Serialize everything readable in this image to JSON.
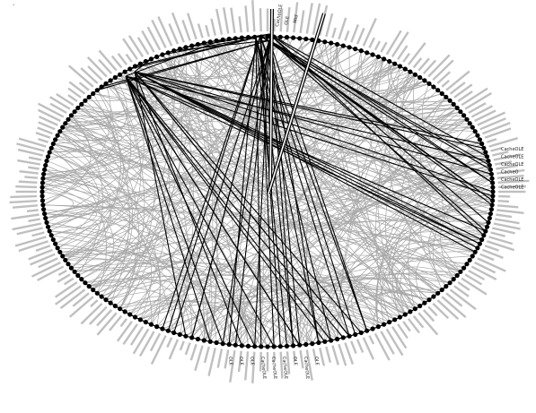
{
  "diagram": {
    "type": "circular-network-graph",
    "colors": {
      "background": "#ffffff",
      "ellipse_outline": "#000000",
      "node_fill": "#000000",
      "edge_faint": "#a6a6a6",
      "edge_strong": "#000000",
      "label_text": "#222222"
    },
    "stats": {
      "node_count_estimate": 220,
      "faint_edge_count_estimate": 420,
      "highlighted_edge_count_estimate": 70
    },
    "corner_mark": "`",
    "hub_labels": [
      "CacheOLE",
      "OLE",
      "Mtd"
    ],
    "right_side_labels": [
      "CacheOLE",
      "CacheOLE",
      "CacheOLE",
      "CacheO",
      "CacheOLE",
      "CacheOLE"
    ],
    "bottom_labels": [
      "OLE",
      "OLE",
      "OLE",
      "CacheOLE",
      "CacheOLE",
      "CacheOLE",
      "OLE",
      "CacheOLE",
      "OLE"
    ]
  }
}
